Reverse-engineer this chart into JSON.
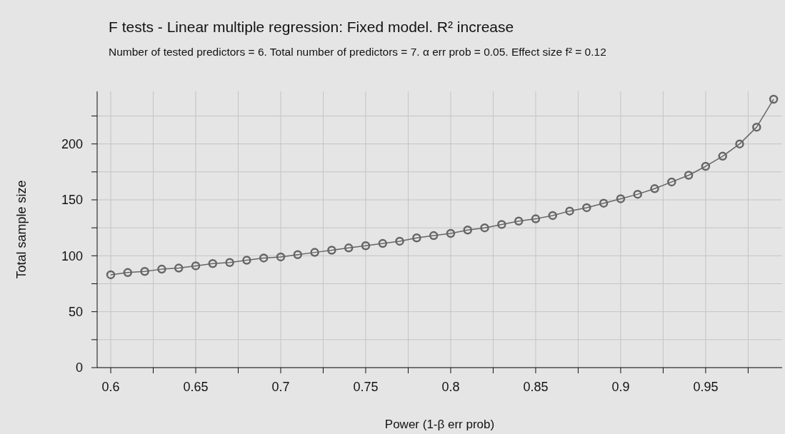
{
  "chart_data": {
    "type": "line",
    "title": "F tests - Linear multiple regression: Fixed model. R² increase",
    "subtitle": "Number of tested predictors = 6. Total number of predictors = 7. α err prob = 0.05. Effect size f² = 0.12",
    "xlabel": "Power (1-β err prob)",
    "ylabel": "Total sample size",
    "x": [
      0.6,
      0.61,
      0.62,
      0.63,
      0.64,
      0.65,
      0.66,
      0.67,
      0.68,
      0.69,
      0.7,
      0.71,
      0.72,
      0.73,
      0.74,
      0.75,
      0.76,
      0.77,
      0.78,
      0.79,
      0.8,
      0.81,
      0.82,
      0.83,
      0.84,
      0.85,
      0.86,
      0.87,
      0.88,
      0.89,
      0.9,
      0.91,
      0.92,
      0.93,
      0.94,
      0.95,
      0.96,
      0.97,
      0.98,
      0.99
    ],
    "series": [
      {
        "color": "#666666",
        "values": [
          83,
          85,
          86,
          88,
          89,
          91,
          93,
          94,
          96,
          98,
          99,
          101,
          103,
          105,
          107,
          109,
          111,
          113,
          116,
          118,
          120,
          123,
          125,
          128,
          131,
          133,
          136,
          140,
          143,
          147,
          151,
          155,
          160,
          166,
          172,
          180,
          189,
          200,
          215,
          240
        ]
      }
    ],
    "xlim": [
      0.592,
      0.995
    ],
    "ylim": [
      0,
      247
    ],
    "xticks": [
      0.6,
      {
        "value": 0.625,
        "label": null
      },
      0.65,
      {
        "value": 0.675,
        "label": null
      },
      0.7,
      {
        "value": 0.725,
        "label": null
      },
      0.75,
      {
        "value": 0.775,
        "label": null
      },
      0.8,
      {
        "value": 0.825,
        "label": null
      },
      0.85,
      {
        "value": 0.875,
        "label": null
      },
      0.9,
      {
        "value": 0.925,
        "label": null
      },
      0.95,
      {
        "value": 0.975,
        "label": null
      }
    ],
    "yticks": [
      0,
      {
        "value": 25,
        "label": null
      },
      50,
      {
        "value": 75,
        "label": null
      },
      100,
      {
        "value": 125,
        "label": null
      },
      150,
      {
        "value": 175,
        "label": null
      },
      200,
      {
        "value": 225,
        "label": null
      }
    ],
    "grid": true,
    "marker": "circle",
    "line_style": "solid",
    "legend": false
  }
}
